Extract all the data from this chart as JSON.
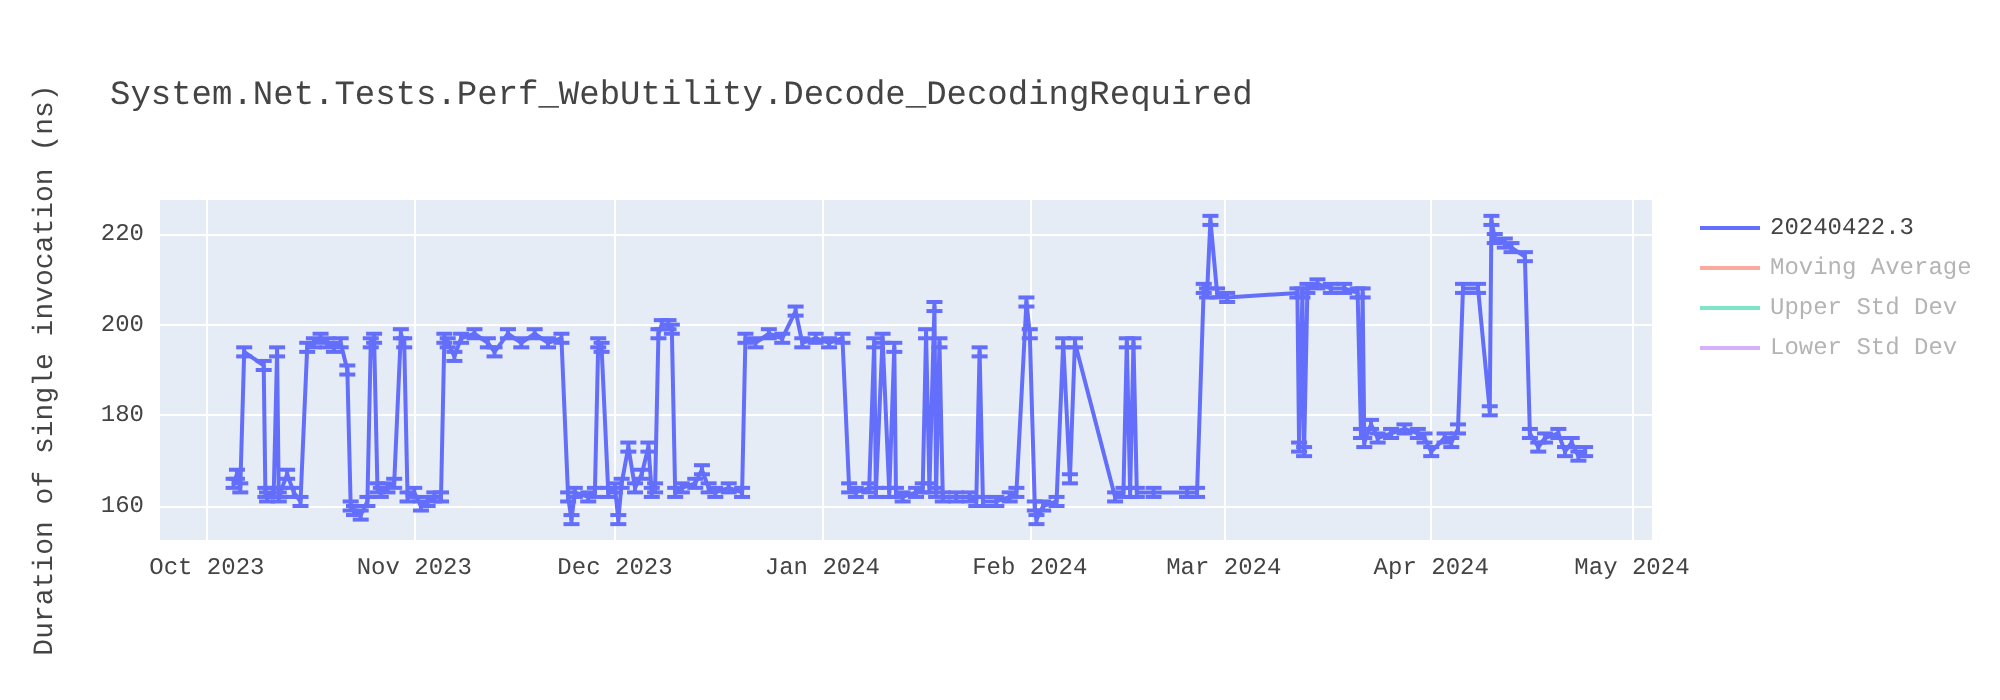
{
  "chart_data": {
    "type": "line",
    "title": "System.Net.Tests.Perf_WebUtility.Decode_DecodingRequired",
    "ylabel": "Duration of single invocation (ns)",
    "xlim": [
      "2023-09-24",
      "2024-05-04"
    ],
    "xticks": [
      {
        "value": "2023-10-01",
        "label": "Oct 2023"
      },
      {
        "value": "2023-11-01",
        "label": "Nov 2023"
      },
      {
        "value": "2023-12-01",
        "label": "Dec 2023"
      },
      {
        "value": "2024-01-01",
        "label": "Jan 2024"
      },
      {
        "value": "2024-02-01",
        "label": "Feb 2024"
      },
      {
        "value": "2024-03-01",
        "label": "Mar 2024"
      },
      {
        "value": "2024-04-01",
        "label": "Apr 2024"
      },
      {
        "value": "2024-05-01",
        "label": "May 2024"
      }
    ],
    "ylim": [
      152.5,
      227.5
    ],
    "yticks": [
      160,
      180,
      200,
      220
    ],
    "grid": true,
    "legend": "top right",
    "marker": "none",
    "line_style": "solid",
    "x": [
      "2023-10-05",
      "2023-10-05T12:00",
      "2023-10-06",
      "2023-10-06T14:00",
      "2023-10-09T12:00",
      "2023-10-09T18:00",
      "2023-10-10",
      "2023-10-11",
      "2023-10-11T12:00",
      "2023-10-11T18:00",
      "2023-10-12",
      "2023-10-13",
      "2023-10-14",
      "2023-10-15",
      "2023-10-16",
      "2023-10-17",
      "2023-10-18",
      "2023-10-19",
      "2023-10-20",
      "2023-10-21",
      "2023-10-22",
      "2023-10-22T12:00",
      "2023-10-23",
      "2023-10-24",
      "2023-10-25",
      "2023-10-25T12:00",
      "2023-10-26",
      "2023-10-26T12:00",
      "2023-10-27",
      "2023-10-28",
      "2023-10-29",
      "2023-10-30",
      "2023-10-30T12:00",
      "2023-10-31",
      "2023-11-01",
      "2023-11-02",
      "2023-11-03",
      "2023-11-04",
      "2023-11-05",
      "2023-11-05T12:00",
      "2023-11-06",
      "2023-11-07",
      "2023-11-08",
      "2023-11-10",
      "2023-11-12",
      "2023-11-13",
      "2023-11-15",
      "2023-11-17",
      "2023-11-19",
      "2023-11-21",
      "2023-11-23",
      "2023-11-24",
      "2023-11-24T12:00",
      "2023-11-25",
      "2023-11-27",
      "2023-11-28",
      "2023-11-28T12:00",
      "2023-11-29",
      "2023-11-30",
      "2023-12-01",
      "2023-12-01T12:00",
      "2023-12-02",
      "2023-12-03",
      "2023-12-04",
      "2023-12-05",
      "2023-12-06",
      "2023-12-06T12:00",
      "2023-12-07",
      "2023-12-07T12:00",
      "2023-12-08",
      "2023-12-09",
      "2023-12-09T12:00",
      "2023-12-10",
      "2023-12-11",
      "2023-12-13",
      "2023-12-14",
      "2023-12-15",
      "2023-12-16",
      "2023-12-18",
      "2023-12-20",
      "2023-12-20T12:00",
      "2023-12-22",
      "2023-12-24",
      "2023-12-26",
      "2023-12-28",
      "2023-12-29",
      "2023-12-31",
      "2024-01-02",
      "2024-01-04",
      "2024-01-05",
      "2024-01-06",
      "2024-01-08",
      "2024-01-08T18:00",
      "2024-01-09",
      "2024-01-10",
      "2024-01-11",
      "2024-01-11T18:00",
      "2024-01-12",
      "2024-01-13",
      "2024-01-15",
      "2024-01-16",
      "2024-01-16T12:00",
      "2024-01-17",
      "2024-01-17T18:00",
      "2024-01-18",
      "2024-01-18T12:00",
      "2024-01-19",
      "2024-01-21",
      "2024-01-23",
      "2024-01-24",
      "2024-01-24T12:00",
      "2024-01-25",
      "2024-01-27",
      "2024-01-29",
      "2024-01-30",
      "2024-01-31T12:00",
      "2024-02-01",
      "2024-02-01T18:00",
      "2024-02-02",
      "2024-02-03",
      "2024-02-05",
      "2024-02-06",
      "2024-02-07",
      "2024-02-07T18:00",
      "2024-02-13T18:00",
      "2024-02-15",
      "2024-02-15T12:00",
      "2024-02-16",
      "2024-02-16T12:00",
      "2024-02-17",
      "2024-02-19T12:00",
      "2024-02-24T12:00",
      "2024-02-26",
      "2024-02-27",
      "2024-02-27T12:00",
      "2024-02-28",
      "2024-02-29",
      "2024-03-01T12:00",
      "2024-03-12",
      "2024-03-12T06:00",
      "2024-03-12T18:00",
      "2024-03-13",
      "2024-03-13T12:00",
      "2024-03-15",
      "2024-03-17",
      "2024-03-19",
      "2024-03-21",
      "2024-03-21T12:00",
      "2024-03-21T18:00",
      "2024-03-22",
      "2024-03-23",
      "2024-03-24",
      "2024-03-26",
      "2024-03-28",
      "2024-03-30",
      "2024-03-31",
      "2024-04-01",
      "2024-04-03",
      "2024-04-04",
      "2024-04-05",
      "2024-04-05T18:00",
      "2024-04-08",
      "2024-04-09T18:00",
      "2024-04-10",
      "2024-04-10T12:00",
      "2024-04-12",
      "2024-04-13",
      "2024-04-15",
      "2024-04-15T18:00",
      "2024-04-17",
      "2024-04-18",
      "2024-04-20",
      "2024-04-21",
      "2024-04-22",
      "2024-04-23",
      "2024-04-24"
    ],
    "series": [
      {
        "name": "20240422.3",
        "color": "#636efa",
        "values": [
          165,
          167,
          164,
          194,
          191,
          163,
          162,
          163,
          194,
          162,
          163,
          167,
          163,
          161,
          195,
          196,
          197,
          196,
          195,
          196,
          190,
          160,
          159,
          158,
          161,
          196,
          197,
          164,
          163,
          164,
          165,
          198,
          196,
          162,
          163,
          160,
          161,
          162,
          162,
          197,
          196,
          193,
          197,
          198,
          196,
          194,
          198,
          196,
          198,
          196,
          197,
          162,
          157,
          163,
          162,
          163,
          196,
          195,
          163,
          164,
          157,
          165,
          173,
          164,
          167,
          173,
          163,
          164,
          198,
          200,
          200,
          199,
          163,
          164,
          165,
          168,
          164,
          163,
          164,
          163,
          197,
          196,
          198,
          197,
          203,
          196,
          197,
          196,
          197,
          164,
          163,
          164,
          196,
          163,
          197,
          163,
          195,
          163,
          162,
          163,
          164,
          198,
          164,
          204,
          163,
          196,
          162,
          162,
          162,
          161,
          194,
          161,
          161,
          162,
          163,
          205,
          198,
          160,
          157,
          160,
          161,
          196,
          166,
          196,
          162,
          163,
          196,
          163,
          196,
          163,
          163,
          163,
          163,
          208,
          207,
          223,
          207,
          206,
          207,
          173,
          207,
          172,
          208,
          209,
          208,
          208,
          207,
          176,
          207,
          174,
          178,
          175,
          176,
          177,
          176,
          175,
          172,
          175,
          174,
          177,
          208,
          208,
          181,
          223,
          219,
          218,
          217,
          215,
          176,
          173,
          175,
          176,
          172,
          174,
          171,
          172
        ],
        "errors": [
          1,
          1,
          1,
          1,
          1,
          1,
          1,
          1,
          1,
          1,
          1,
          1,
          1,
          1,
          1,
          1,
          1,
          1,
          1,
          1,
          1,
          1,
          1,
          1,
          1,
          1,
          1,
          1,
          1,
          1,
          1,
          1,
          1,
          1,
          1,
          1,
          1,
          1,
          1,
          1,
          1,
          1,
          1,
          1,
          1,
          1,
          1,
          1,
          1,
          1,
          1,
          1,
          1,
          1,
          1,
          1,
          1,
          1,
          1,
          1,
          1,
          1,
          1,
          1,
          1,
          1,
          1,
          1,
          1,
          1,
          1,
          1,
          1,
          1,
          1,
          1,
          1,
          1,
          1,
          1,
          1,
          1,
          1,
          1,
          1,
          1,
          1,
          1,
          1,
          1,
          1,
          1,
          1,
          1,
          1,
          1,
          1,
          1,
          1,
          1,
          1,
          1,
          1,
          1,
          1,
          1,
          1,
          1,
          1,
          1,
          1,
          1,
          1,
          1,
          1,
          1,
          1,
          1,
          1,
          1,
          1,
          1,
          1,
          1,
          1,
          1,
          1,
          1,
          1,
          1,
          1,
          1,
          1,
          1,
          1,
          1,
          1,
          1,
          1,
          1,
          1,
          1,
          1,
          1,
          1,
          1,
          1,
          1,
          1,
          1,
          1,
          1,
          1,
          1,
          1,
          1,
          1,
          1,
          1,
          1,
          1,
          1,
          1,
          1,
          1,
          1,
          1,
          1,
          1,
          1,
          1,
          1,
          1,
          1,
          1,
          1
        ]
      },
      {
        "name": "Moving Average",
        "color": "#ef553b",
        "values": [
          null,
          null,
          null,
          null,
          null,
          null,
          null,
          null,
          null,
          null,
          null,
          null,
          null,
          null,
          null,
          null,
          null,
          null,
          null,
          null,
          null,
          null,
          null,
          null,
          null,
          null,
          null,
          null,
          null,
          null,
          null,
          null,
          null,
          null,
          null,
          null,
          null,
          null,
          null,
          null,
          null,
          null,
          null,
          null,
          null,
          null,
          null,
          null,
          null,
          null,
          null,
          null,
          null,
          null,
          null,
          null,
          null,
          null,
          null,
          null,
          null,
          null,
          null,
          null,
          null,
          null,
          null,
          null,
          null,
          null,
          null,
          null,
          null,
          null,
          null,
          null,
          null,
          null,
          null,
          null,
          null,
          null,
          null,
          null,
          null,
          null,
          null,
          null,
          null,
          null,
          null,
          null,
          null,
          null,
          null,
          null,
          null,
          null,
          null,
          null,
          null,
          null,
          null,
          null,
          null,
          null,
          null,
          null,
          null,
          null,
          null,
          null,
          null,
          null,
          null,
          null,
          null,
          null,
          null,
          null,
          null,
          null,
          null,
          null,
          null,
          null,
          null,
          null,
          null,
          null,
          null,
          null,
          null,
          null,
          null,
          null,
          null,
          null,
          null,
          null,
          null,
          null,
          null,
          null,
          null,
          null,
          null,
          null,
          null,
          null,
          null,
          null,
          null,
          null,
          null,
          null,
          null,
          null,
          null,
          null,
          null,
          null,
          null,
          null,
          null,
          null,
          null,
          null,
          null,
          null,
          null,
          null,
          null,
          null,
          null,
          null
        ]
      },
      {
        "name": "Upper Std Dev",
        "color": "#00cc96",
        "values": [
          null,
          null,
          null,
          null,
          null,
          null,
          null,
          null,
          null,
          null,
          null,
          null,
          null,
          null,
          null,
          null,
          null,
          null,
          null,
          null,
          null,
          null,
          null,
          null,
          null,
          null,
          null,
          null,
          null,
          null,
          null,
          null,
          null,
          null,
          null,
          null,
          null,
          null,
          null,
          null,
          null,
          null,
          null,
          null,
          null,
          null,
          null,
          null,
          null,
          null,
          null,
          null,
          null,
          null,
          null,
          null,
          null,
          null,
          null,
          null,
          null,
          null,
          null,
          null,
          null,
          null,
          null,
          null,
          null,
          null,
          null,
          null,
          null,
          null,
          null,
          null,
          null,
          null,
          null,
          null,
          null,
          null,
          null,
          null,
          null,
          null,
          null,
          null,
          null,
          null,
          null,
          null,
          null,
          null,
          null,
          null,
          null,
          null,
          null,
          null,
          null,
          null,
          null,
          null,
          null,
          null,
          null,
          null,
          null,
          null,
          null,
          null,
          null,
          null,
          null,
          null,
          null,
          null,
          null,
          null,
          null,
          null,
          null,
          null,
          null,
          null,
          null,
          null,
          null,
          null,
          null,
          null,
          null,
          null,
          null,
          null,
          null,
          null,
          null,
          null,
          null,
          null,
          null,
          null,
          null,
          null,
          null,
          null,
          null,
          null,
          null,
          null,
          null,
          null,
          null,
          null,
          null,
          null,
          null,
          null,
          null,
          null,
          null,
          null,
          null,
          null,
          null,
          null,
          null,
          null,
          null,
          null,
          null,
          null,
          null,
          null
        ]
      },
      {
        "name": "Lower Std Dev",
        "color": "#ab63fa",
        "values": [
          null,
          null,
          null,
          null,
          null,
          null,
          null,
          null,
          null,
          null,
          null,
          null,
          null,
          null,
          null,
          null,
          null,
          null,
          null,
          null,
          null,
          null,
          null,
          null,
          null,
          null,
          null,
          null,
          null,
          null,
          null,
          null,
          null,
          null,
          null,
          null,
          null,
          null,
          null,
          null,
          null,
          null,
          null,
          null,
          null,
          null,
          null,
          null,
          null,
          null,
          null,
          null,
          null,
          null,
          null,
          null,
          null,
          null,
          null,
          null,
          null,
          null,
          null,
          null,
          null,
          null,
          null,
          null,
          null,
          null,
          null,
          null,
          null,
          null,
          null,
          null,
          null,
          null,
          null,
          null,
          null,
          null,
          null,
          null,
          null,
          null,
          null,
          null,
          null,
          null,
          null,
          null,
          null,
          null,
          null,
          null,
          null,
          null,
          null,
          null,
          null,
          null,
          null,
          null,
          null,
          null,
          null,
          null,
          null,
          null,
          null,
          null,
          null,
          null,
          null,
          null,
          null,
          null,
          null,
          null,
          null,
          null,
          null,
          null,
          null,
          null,
          null,
          null,
          null,
          null,
          null,
          null,
          null,
          null,
          null,
          null,
          null,
          null,
          null,
          null,
          null,
          null,
          null,
          null,
          null,
          null,
          null,
          null,
          null,
          null,
          null,
          null,
          null,
          null,
          null,
          null,
          null,
          null,
          null,
          null,
          null,
          null,
          null,
          null,
          null,
          null,
          null,
          null,
          null,
          null,
          null,
          null,
          null,
          null,
          null,
          null
        ]
      }
    ]
  }
}
